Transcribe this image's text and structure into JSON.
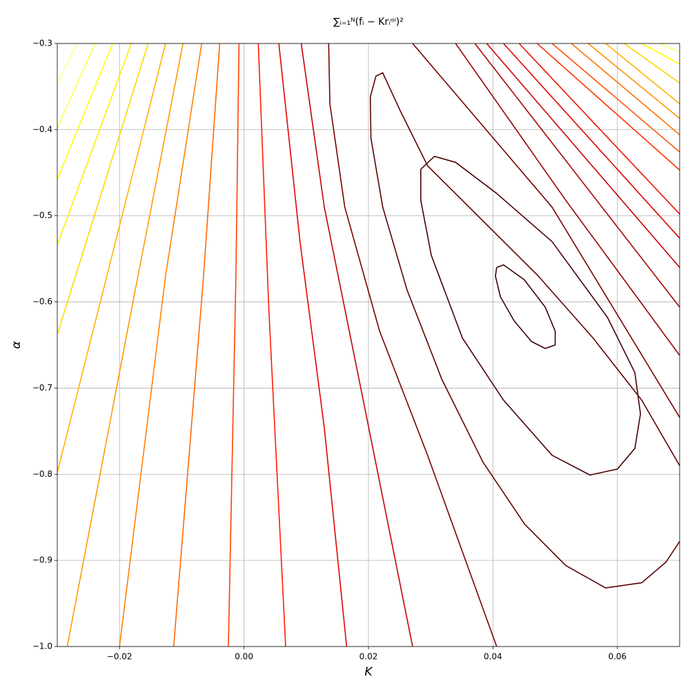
{
  "chart_data": {
    "type": "contour",
    "title": "∑ᵢ₌₁ᴺ(fᵢ − Krᵢᵅⁱ)²",
    "xlabel": "K",
    "ylabel": "α",
    "xlim": [
      -0.03,
      0.07
    ],
    "xticks": [
      {
        "value": -0.02,
        "label": "−0.02"
      },
      {
        "value": 0,
        "label": "0.00"
      },
      {
        "value": 0.02,
        "label": "0.02"
      },
      {
        "value": 0.04,
        "label": "0.04"
      },
      {
        "value": 0.06,
        "label": "0.06"
      }
    ],
    "ylim": [
      -1.0,
      -0.3
    ],
    "yticks": [
      {
        "value": -1.0,
        "label": "−1.0"
      },
      {
        "value": -0.9,
        "label": "−0.9"
      },
      {
        "value": -0.8,
        "label": "−0.8"
      },
      {
        "value": -0.7,
        "label": "−0.7"
      },
      {
        "value": -0.6,
        "label": "−0.6"
      },
      {
        "value": -0.5,
        "label": "−0.5"
      },
      {
        "value": -0.4,
        "label": "−0.4"
      },
      {
        "value": -0.3,
        "label": "−0.3"
      }
    ],
    "grid": true,
    "series": [
      {
        "color": "#3a0000",
        "x": [
          0.0406,
          0.0417,
          0.045,
          0.0484,
          0.05,
          0.05,
          0.0484,
          0.0462,
          0.0434,
          0.0412,
          0.0404,
          0.0406
        ],
        "values": [
          -0.56,
          -0.557,
          -0.574,
          -0.606,
          -0.634,
          -0.65,
          -0.654,
          -0.646,
          -0.622,
          -0.594,
          -0.57,
          -0.56
        ]
      },
      {
        "color": "#4a0000",
        "x": [
          0.0284,
          0.0306,
          0.034,
          0.0406,
          0.0495,
          0.0584,
          0.0628,
          0.0637,
          0.0628,
          0.06,
          0.0556,
          0.0495,
          0.0417,
          0.0351,
          0.0301,
          0.0284,
          0.0284
        ],
        "values": [
          -0.446,
          -0.431,
          -0.438,
          -0.474,
          -0.53,
          -0.618,
          -0.682,
          -0.73,
          -0.77,
          -0.794,
          -0.801,
          -0.778,
          -0.714,
          -0.642,
          -0.546,
          -0.482,
          -0.446
        ]
      },
      {
        "color": "#5c0000",
        "x": [
          0.07,
          0.0639,
          0.0561,
          0.0473,
          0.0384,
          0.0295,
          0.0251,
          0.0223,
          0.0212,
          0.0203,
          0.0204,
          0.0223,
          0.0262,
          0.0318,
          0.0384,
          0.0451,
          0.0517,
          0.0581,
          0.0639,
          0.0678,
          0.07
        ],
        "values": [
          -0.79,
          -0.714,
          -0.642,
          -0.57,
          -0.506,
          -0.442,
          -0.378,
          -0.334,
          -0.338,
          -0.362,
          -0.41,
          -0.49,
          -0.586,
          -0.69,
          -0.786,
          -0.858,
          -0.906,
          -0.932,
          -0.926,
          -0.902,
          -0.878
        ]
      },
      {
        "color": "#780000",
        "x": [
          0.0136,
          0.0138,
          0.0162,
          0.0218,
          0.0295,
          0.0406
        ],
        "values": [
          -0.3,
          -0.37,
          -0.49,
          -0.634,
          -0.778,
          -1.0
        ]
      },
      {
        "color": "#780000",
        "x": [
          0.0271,
          0.0495,
          0.07
        ],
        "values": [
          -0.3,
          -0.49,
          -0.734
        ]
      },
      {
        "color": "#960000",
        "x": [
          0.034,
          0.0517,
          0.07
        ],
        "values": [
          -0.3,
          -0.482,
          -0.662
        ]
      },
      {
        "color": "#b00000",
        "x": [
          0.0371,
          0.07
        ],
        "values": [
          -0.3,
          -0.606
        ]
      },
      {
        "color": "#c80000",
        "x": [
          0.039,
          0.07
        ],
        "values": [
          -0.3,
          -0.56
        ]
      },
      {
        "color": "#e00000",
        "x": [
          0.0417,
          0.07
        ],
        "values": [
          -0.3,
          -0.526
        ]
      },
      {
        "color": "#f01000",
        "x": [
          0.0442,
          0.07
        ],
        "values": [
          -0.3,
          -0.498
        ]
      },
      {
        "color": "#ff3000",
        "x": [
          0.0471,
          0.07
        ],
        "values": [
          -0.3,
          -0.447
        ]
      },
      {
        "color": "#ff5000",
        "x": [
          0.0495,
          0.07
        ],
        "values": [
          -0.3,
          -0.426
        ]
      },
      {
        "color": "#ff7000",
        "x": [
          0.0526,
          0.07
        ],
        "values": [
          -0.3,
          -0.406
        ]
      },
      {
        "color": "#ff9000",
        "x": [
          0.0553,
          0.07
        ],
        "values": [
          -0.3,
          -0.387
        ]
      },
      {
        "color": "#ffb000",
        "x": [
          0.0581,
          0.07
        ],
        "values": [
          -0.3,
          -0.37
        ]
      },
      {
        "color": "#ffd000",
        "x": [
          0.0611,
          0.07
        ],
        "values": [
          -0.3,
          -0.346
        ]
      },
      {
        "color": "#ffff00",
        "x": [
          0.0639,
          0.07
        ],
        "values": [
          -0.3,
          -0.324
        ]
      },
      {
        "color": "#ffff70",
        "x": [
          0.0667,
          0.07
        ],
        "values": [
          -0.3,
          -0.31
        ]
      },
      {
        "color": "#ffff80",
        "x": [
          -0.0268,
          -0.03
        ],
        "values": [
          -0.3,
          -0.346
        ]
      },
      {
        "color": "#ffff50",
        "x": [
          -0.0239,
          -0.03
        ],
        "values": [
          -0.3,
          -0.398
        ]
      },
      {
        "color": "#ffff00",
        "x": [
          -0.0211,
          -0.03
        ],
        "values": [
          -0.3,
          -0.458
        ]
      },
      {
        "color": "#ffee00",
        "x": [
          -0.0181,
          -0.03
        ],
        "values": [
          -0.3,
          -0.534
        ]
      },
      {
        "color": "#ffd700",
        "x": [
          -0.0154,
          -0.03
        ],
        "values": [
          -0.3,
          -0.638
        ]
      },
      {
        "color": "#ffb300",
        "x": [
          -0.0126,
          -0.03
        ],
        "values": [
          -0.3,
          -0.798
        ]
      },
      {
        "color": "#ff9900",
        "x": [
          -0.0098,
          -0.0181,
          -0.0284
        ],
        "values": [
          -0.3,
          -0.61,
          -1.0
        ]
      },
      {
        "color": "#ff8000",
        "x": [
          -0.0068,
          -0.0126,
          -0.02
        ],
        "values": [
          -0.3,
          -0.57,
          -1.0
        ]
      },
      {
        "color": "#ff6600",
        "x": [
          -0.0039,
          -0.0065,
          -0.0113
        ],
        "values": [
          -0.3,
          -0.57,
          -1.0
        ]
      },
      {
        "color": "#ff4000",
        "x": [
          -0.0008,
          -0.0013,
          -0.0025
        ],
        "values": [
          -0.3,
          -0.57,
          -1.0
        ]
      },
      {
        "color": "#ff1a00",
        "x": [
          0.0023,
          0.004,
          0.0067
        ],
        "values": [
          -0.3,
          -0.61,
          -1.0
        ]
      },
      {
        "color": "#e60000",
        "x": [
          0.0056,
          0.009,
          0.0129,
          0.0165
        ],
        "values": [
          -0.3,
          -0.53,
          -0.746,
          -1.0
        ]
      },
      {
        "color": "#c40000",
        "x": [
          0.0092,
          0.0129,
          0.0196,
          0.0271
        ],
        "values": [
          -0.3,
          -0.49,
          -0.73,
          -1.0
        ]
      }
    ]
  }
}
